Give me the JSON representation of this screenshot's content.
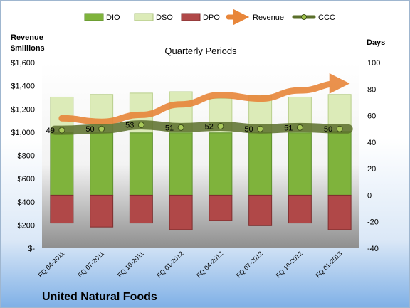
{
  "chart_data": {
    "type": "bar",
    "subtitle": "Quarterly Periods",
    "company": "United Natural Foods",
    "left_axis_title": [
      "Revenue",
      "$millions"
    ],
    "right_axis_title": "Days",
    "left_ylim": [
      0,
      1600
    ],
    "left_ticks": [
      "$-",
      "$200",
      "$400",
      "$600",
      "$800",
      "$1,000",
      "$1,200",
      "$1,400",
      "$1,600"
    ],
    "right_ylim": [
      -40,
      100
    ],
    "right_ticks": [
      "-40",
      "-20",
      "0",
      "20",
      "40",
      "60",
      "80",
      "100"
    ],
    "categories": [
      "FQ 04-2011",
      "FQ 07-2011",
      "FQ 10-2011",
      "FQ 01-2012",
      "FQ 04-2012",
      "FQ 07-2012",
      "FQ 10-2012",
      "FQ 01-2013"
    ],
    "series": [
      {
        "name": "DIO",
        "axis": "days",
        "color": "#7fb33c",
        "values": [
          47,
          47,
          47,
          47,
          47,
          47,
          47,
          48
        ]
      },
      {
        "name": "DSO",
        "axis": "days",
        "color": "#dcebb8",
        "values": [
          27,
          29,
          30,
          31,
          26,
          28,
          27,
          28
        ]
      },
      {
        "name": "DPO",
        "axis": "days",
        "color": "#b04848",
        "values": [
          -21,
          -24,
          -21,
          -26,
          -19,
          -23,
          -21,
          -26
        ]
      },
      {
        "name": "Revenue",
        "axis": "revenue",
        "color": "#e8863a",
        "values": [
          1120,
          1090,
          1150,
          1240,
          1320,
          1290,
          1360,
          1420
        ]
      },
      {
        "name": "CCC",
        "axis": "days",
        "color": "#5a6f2a",
        "values": [
          49,
          50,
          53,
          51,
          52,
          50,
          51,
          50
        ]
      }
    ],
    "ccc_labels": [
      "49",
      "50",
      "53",
      "51",
      "52",
      "50",
      "51",
      "50"
    ],
    "legend_position": "top",
    "grid": false
  }
}
